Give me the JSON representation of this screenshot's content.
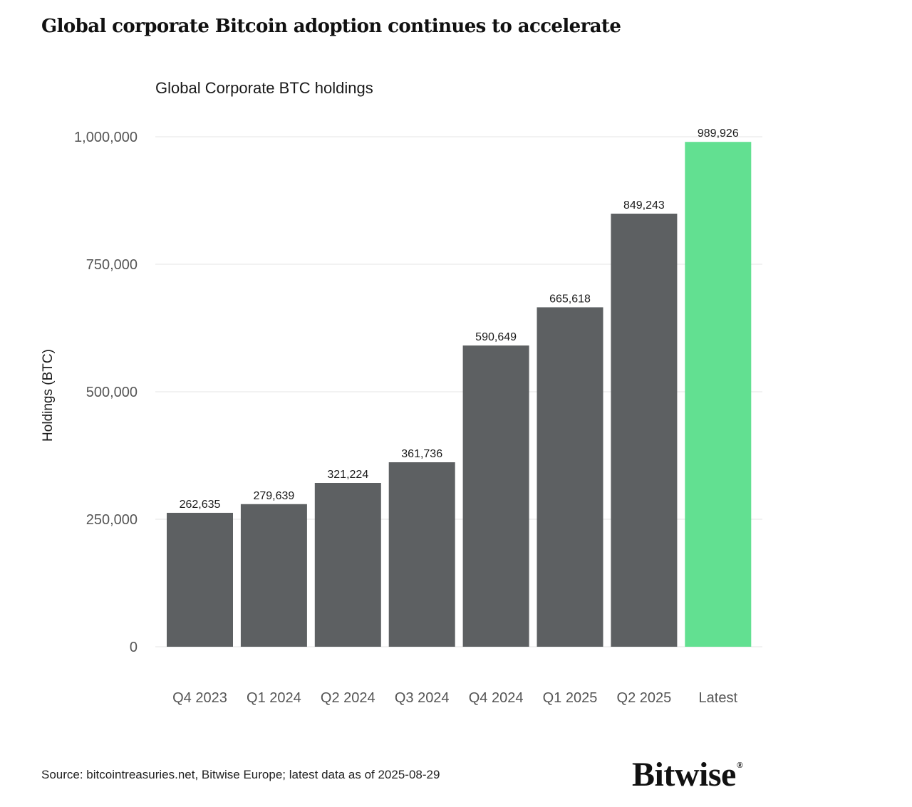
{
  "headline": "Global corporate Bitcoin adoption continues to accelerate",
  "source": "Source: bitcointreasuries.net, Bitwise Europe; latest data as of 2025-08-29",
  "logo": "Bitwise",
  "colors": {
    "bar": "#5d6062",
    "highlight": "#62e091",
    "grid": "#e4e4e4",
    "tick_text": "#555555",
    "label_text": "#1a1a1a"
  },
  "chart_data": {
    "type": "bar",
    "title": "Global Corporate BTC holdings",
    "xlabel": "",
    "ylabel": "Holdings (BTC)",
    "categories": [
      "Q4 2023",
      "Q1 2024",
      "Q2 2024",
      "Q3 2024",
      "Q4 2024",
      "Q1 2025",
      "Q2 2025",
      "Latest"
    ],
    "values": [
      262635,
      279639,
      321224,
      361736,
      590649,
      665618,
      849243,
      989926
    ],
    "value_labels": [
      "262,635",
      "279,639",
      "321,224",
      "361,736",
      "590,649",
      "665,618",
      "849,243",
      "989,926"
    ],
    "highlight_category": "Latest",
    "ylim": [
      0,
      1000000
    ],
    "yticks": [
      0,
      250000,
      500000,
      750000,
      1000000
    ],
    "ytick_labels": [
      "0",
      "250,000",
      "500,000",
      "750,000",
      "1,000,000"
    ],
    "grid": true,
    "legend": "none"
  }
}
